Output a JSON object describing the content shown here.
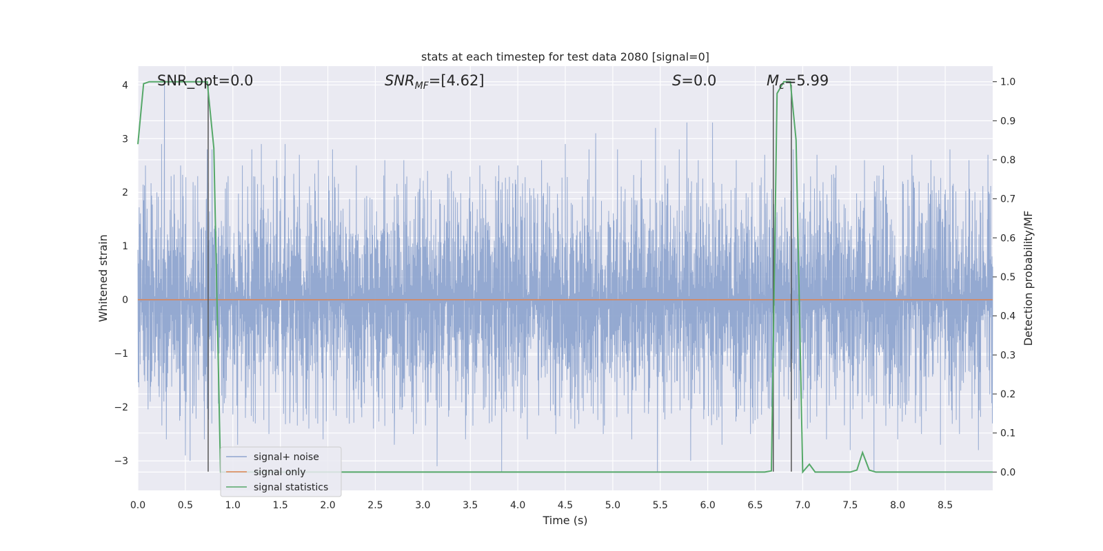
{
  "chart_data": {
    "type": "line",
    "title": "stats at each timestep for test data 2080 [signal=0]",
    "xlabel": "Time (s)",
    "ylabel": "Whitened strain",
    "ylabel_right": "Detection probability/MF",
    "xlim": [
      0.0,
      9.0
    ],
    "ylim": [
      -3.55,
      4.35
    ],
    "ylim_right": [
      -0.047,
      1.04
    ],
    "x_ticks": [
      0.0,
      0.5,
      1.0,
      1.5,
      2.0,
      2.5,
      3.0,
      3.5,
      4.0,
      4.5,
      5.0,
      5.5,
      6.0,
      6.5,
      7.0,
      7.5,
      8.0,
      8.5
    ],
    "x_tick_labels": [
      "0.0",
      "0.5",
      "1.0",
      "1.5",
      "2.0",
      "2.5",
      "3.0",
      "3.5",
      "4.0",
      "4.5",
      "5.0",
      "5.5",
      "6.0",
      "6.5",
      "7.0",
      "7.5",
      "8.0",
      "8.5"
    ],
    "y_ticks": [
      -3,
      -2,
      -1,
      0,
      1,
      2,
      3,
      4
    ],
    "y_tick_labels": [
      "−3",
      "−2",
      "−1",
      "0",
      "1",
      "2",
      "3",
      "4"
    ],
    "y_right_ticks": [
      0.0,
      0.1,
      0.2,
      0.3,
      0.4,
      0.5,
      0.6,
      0.7,
      0.8,
      0.9,
      1.0
    ],
    "y_right_tick_labels": [
      "0.0",
      "0.1",
      "0.2",
      "0.3",
      "0.4",
      "0.5",
      "0.6",
      "0.7",
      "0.8",
      "0.9",
      "1.0"
    ],
    "grid": true,
    "legend_position": "lower-left",
    "annotations": {
      "snr_opt": "SNR_opt=0.0",
      "snr_mf_main": "SNR",
      "snr_mf_sub": "MF",
      "snr_mf_rest": "=[4.62]",
      "s_main": "S",
      "s_rest": "=0.0",
      "mc_main": "M",
      "mc_sub": "c",
      "mc_rest": "=5.99"
    },
    "series": [
      {
        "name": "signal+ noise",
        "color": "#8fa5cf",
        "description_range": [
          -3.2,
          4.0
        ],
        "spikes": [
          [
            0.08,
            2.5
          ],
          [
            0.13,
            -1.9
          ],
          [
            0.2,
            2.0
          ],
          [
            0.25,
            2.9
          ],
          [
            0.28,
            4.0
          ],
          [
            0.3,
            -2.6
          ],
          [
            0.35,
            2.3
          ],
          [
            0.45,
            2.5
          ],
          [
            0.5,
            -2.9
          ],
          [
            0.55,
            -3.0
          ],
          [
            0.63,
            2.3
          ],
          [
            0.7,
            -2.6
          ],
          [
            0.73,
            2.8
          ],
          [
            0.78,
            2.8
          ],
          [
            0.95,
            2.3
          ],
          [
            1.05,
            -2.7
          ],
          [
            1.1,
            2.5
          ],
          [
            1.2,
            2.8
          ],
          [
            1.3,
            2.9
          ],
          [
            1.38,
            -2.5
          ],
          [
            1.46,
            2.6
          ],
          [
            1.55,
            2.9
          ],
          [
            1.6,
            -2.3
          ],
          [
            1.7,
            2.7
          ],
          [
            1.8,
            -2.4
          ],
          [
            1.9,
            2.6
          ],
          [
            1.95,
            -2.6
          ],
          [
            2.05,
            2.8
          ],
          [
            2.2,
            -2.2
          ],
          [
            2.3,
            2.5
          ],
          [
            2.48,
            -2.4
          ],
          [
            2.6,
            2.6
          ],
          [
            2.7,
            -2.7
          ],
          [
            2.8,
            2.6
          ],
          [
            2.9,
            -2.5
          ],
          [
            3.05,
            2.4
          ],
          [
            3.15,
            -3.1
          ],
          [
            3.3,
            2.4
          ],
          [
            3.45,
            -2.6
          ],
          [
            3.6,
            2.5
          ],
          [
            3.7,
            -2.3
          ],
          [
            3.8,
            2.5
          ],
          [
            3.83,
            -3.2
          ],
          [
            4.0,
            2.5
          ],
          [
            4.1,
            -2.6
          ],
          [
            4.25,
            2.6
          ],
          [
            4.4,
            -2.5
          ],
          [
            4.5,
            2.9
          ],
          [
            4.6,
            -2.4
          ],
          [
            4.75,
            2.8
          ],
          [
            4.82,
            3.1
          ],
          [
            4.9,
            -2.5
          ],
          [
            5.05,
            2.8
          ],
          [
            5.2,
            -2.6
          ],
          [
            5.3,
            2.6
          ],
          [
            5.45,
            3.2
          ],
          [
            5.47,
            -3.2
          ],
          [
            5.55,
            2.5
          ],
          [
            5.7,
            2.8
          ],
          [
            5.78,
            3.3
          ],
          [
            5.82,
            -3.0
          ],
          [
            5.9,
            2.6
          ],
          [
            6.05,
            3.3
          ],
          [
            6.15,
            -2.7
          ],
          [
            6.3,
            2.6
          ],
          [
            6.45,
            -2.5
          ],
          [
            6.6,
            2.7
          ],
          [
            6.75,
            -2.6
          ],
          [
            6.9,
            2.8
          ],
          [
            7.05,
            -2.4
          ],
          [
            7.15,
            2.7
          ],
          [
            7.25,
            -2.6
          ],
          [
            7.35,
            2.5
          ],
          [
            7.5,
            -2.8
          ],
          [
            7.65,
            2.6
          ],
          [
            7.75,
            -3.2
          ],
          [
            7.85,
            2.5
          ],
          [
            8.0,
            -2.6
          ],
          [
            8.15,
            2.7
          ],
          [
            8.25,
            -2.5
          ],
          [
            8.35,
            2.6
          ],
          [
            8.45,
            -2.7
          ],
          [
            8.55,
            2.8
          ],
          [
            8.65,
            -2.5
          ],
          [
            8.75,
            2.6
          ],
          [
            8.85,
            -2.8
          ],
          [
            8.95,
            2.7
          ]
        ]
      },
      {
        "name": "signal only",
        "color": "#dd8452",
        "x": [
          0.0,
          9.0
        ],
        "y": [
          0.0,
          0.0
        ]
      },
      {
        "name": "signal statistics",
        "color": "#55a868",
        "axis": "right",
        "x": [
          0.0,
          0.06,
          0.12,
          0.2,
          0.3,
          0.4,
          0.5,
          0.6,
          0.7,
          0.73,
          0.8,
          0.87,
          0.93,
          1.0,
          2.0,
          3.0,
          4.0,
          5.0,
          6.0,
          6.6,
          6.67,
          6.73,
          6.8,
          6.87,
          6.93,
          7.0,
          7.07,
          7.13,
          7.2,
          7.5,
          7.57,
          7.63,
          7.7,
          7.77,
          8.0,
          9.0
        ],
        "y": [
          0.84,
          0.995,
          1.0,
          1.0,
          1.0,
          1.0,
          1.0,
          1.0,
          1.0,
          1.0,
          0.83,
          0.0,
          0.0,
          0.0,
          0.0,
          0.0,
          0.0,
          0.0,
          0.0,
          0.0,
          0.003,
          0.97,
          1.0,
          1.0,
          0.85,
          0.0,
          0.02,
          0.0,
          0.0,
          0.0,
          0.005,
          0.05,
          0.005,
          0.0,
          0.0,
          0.0
        ]
      }
    ],
    "vertical_lines": [
      0.74,
      6.69,
      6.88
    ],
    "vertical_line_color": "#555555"
  }
}
